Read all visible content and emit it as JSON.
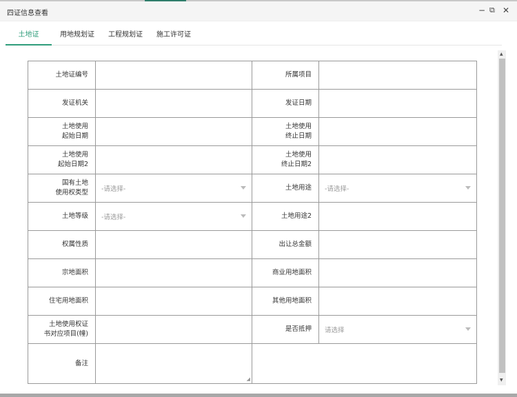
{
  "window": {
    "title": "四证信息查看",
    "minimize": "−",
    "maximize": "⧉",
    "close": "✕"
  },
  "tabs": [
    {
      "label": "土地证",
      "active": true
    },
    {
      "label": "用地规划证"
    },
    {
      "label": "工程规划证"
    },
    {
      "label": "施工许可证"
    }
  ],
  "form": {
    "placeholder_select": "-请选择-",
    "placeholder_select2": "请选择",
    "labels": {
      "cert_no": "土地证编号",
      "project": "所属项目",
      "issuer": "发证机关",
      "issue_date": "发证日期",
      "use_start_1": "土地使用",
      "use_start_2": "起始日期",
      "use_end_1": "土地使用",
      "use_end_2": "终止日期",
      "use_start2_1": "土地使用",
      "use_start2_2": "起始日期2",
      "use_end2_1": "土地使用",
      "use_end2_2": "终止日期2",
      "right_type_1": "国有土地",
      "right_type_2": "使用权类型",
      "land_use": "土地用途",
      "land_grade": "土地等级",
      "land_use2": "土地用途2",
      "ownership": "权属性质",
      "transfer_amount": "出让总金额",
      "parcel_area": "宗地面积",
      "commercial_area": "商业用地面积",
      "residential_area": "住宅用地面积",
      "other_area": "其他用地面积",
      "cert_items_1": "土地使用权证",
      "cert_items_2": "书对应项目(幢)",
      "mortgaged": "是否抵押",
      "remarks": "备注"
    }
  },
  "scrollbar": {
    "up": "▲",
    "down": "▼"
  }
}
